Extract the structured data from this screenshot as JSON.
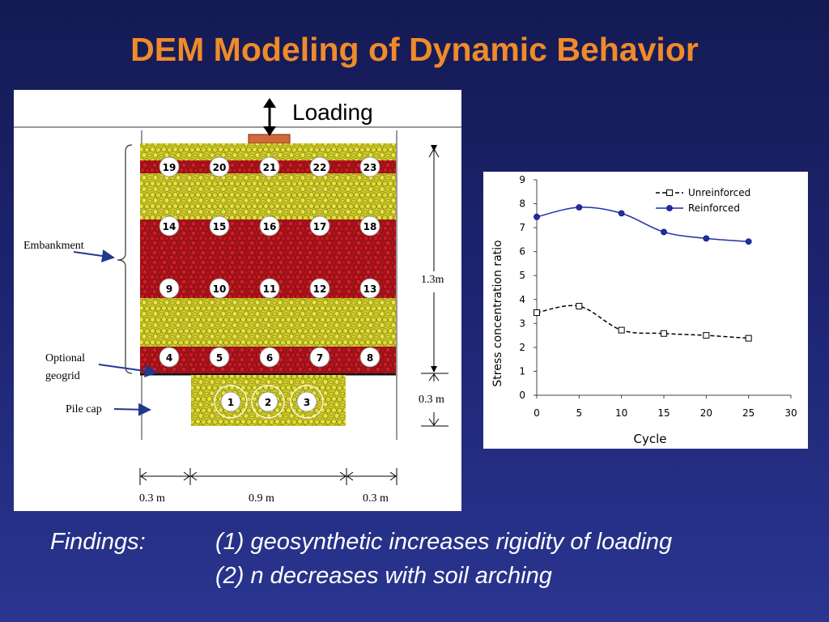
{
  "slide": {
    "title": "DEM Modeling of Dynamic Behavior"
  },
  "figure": {
    "loading_label": "Loading",
    "embankment_label": "Embankment",
    "geogrid_label_line1": "Optional",
    "geogrid_label_line2": "geogrid",
    "pile_cap_label": "Pile cap",
    "height_embankment": "1.3m",
    "height_pile_cap": "0.3 m",
    "width_left": "0.3 m",
    "width_middle": "0.9 m",
    "width_right": "0.3 m",
    "measurement_circle_labels": [
      "19",
      "20",
      "21",
      "22",
      "23",
      "14",
      "15",
      "16",
      "17",
      "18",
      "9",
      "10",
      "11",
      "12",
      "13",
      "4",
      "5",
      "6",
      "7",
      "8",
      "1",
      "2",
      "3"
    ],
    "colors": {
      "red_layer": "#c0141a",
      "yellow_layer": "#d4d22a",
      "load_plate": "#d2693c"
    }
  },
  "chart_data": {
    "type": "line",
    "xlabel": "Cycle",
    "ylabel": "Stress concentration ratio",
    "xlim": [
      0,
      30
    ],
    "ylim": [
      0,
      9
    ],
    "xticks": [
      "0",
      "5",
      "10",
      "15",
      "20",
      "25",
      "30"
    ],
    "yticks": [
      "0",
      "1",
      "2",
      "3",
      "4",
      "5",
      "6",
      "7",
      "8",
      "9"
    ],
    "legend_position": "top-right",
    "grid": false,
    "series": [
      {
        "name": "Unreinforced",
        "x": [
          0,
          5,
          10,
          15,
          20,
          25
        ],
        "values": [
          3.45,
          3.72,
          2.72,
          2.58,
          2.5,
          2.38
        ],
        "color": "#000000",
        "marker": "square-open",
        "line": "dashed"
      },
      {
        "name": "Reinforced",
        "x": [
          0,
          5,
          10,
          15,
          20,
          25
        ],
        "values": [
          7.45,
          7.85,
          7.6,
          6.82,
          6.55,
          6.42
        ],
        "color": "#1f2fa8",
        "marker": "circle-filled",
        "line": "solid"
      }
    ]
  },
  "findings": {
    "label": "Findings:",
    "item1": "(1) geosynthetic increases rigidity of loading",
    "item2": "(2) n decreases with soil arching"
  }
}
